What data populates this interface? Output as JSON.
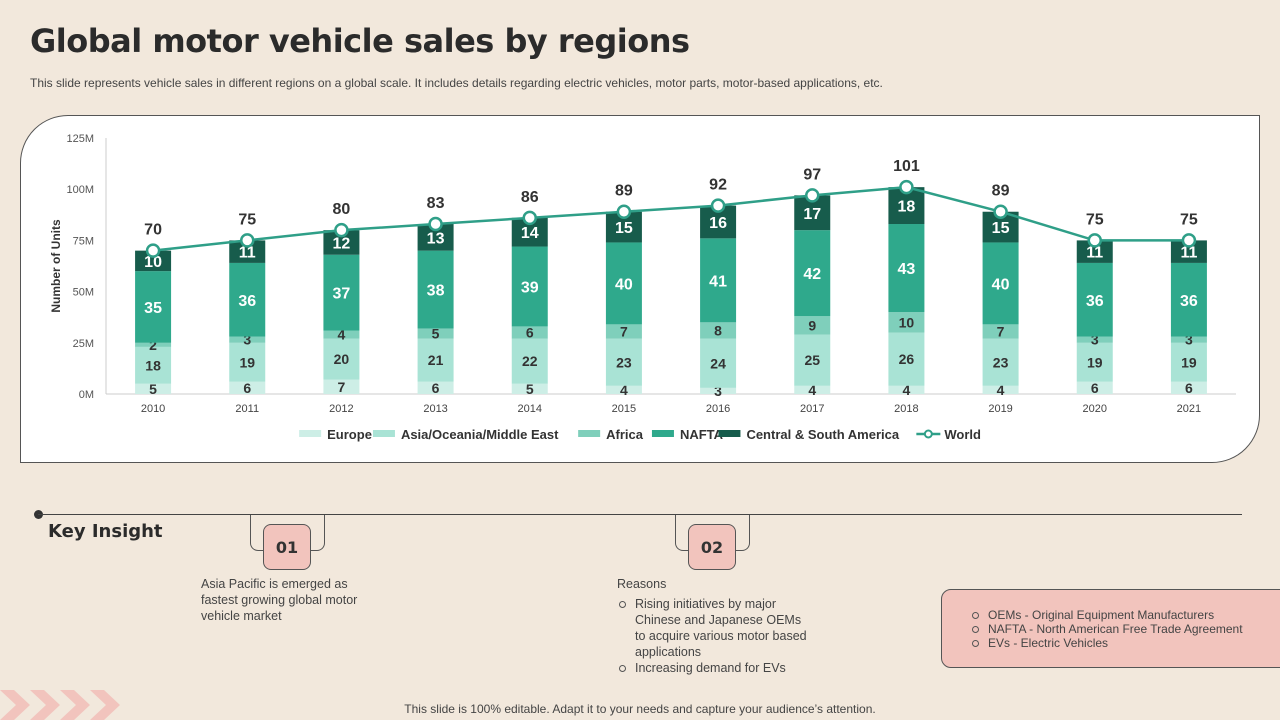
{
  "title": "Global motor vehicle sales by regions",
  "subtitle": "This slide represents vehicle sales in different regions on a global scale. It includes details regarding electric vehicles, motor parts, motor-based applications, etc.",
  "chart_data": {
    "type": "bar",
    "stacked": true,
    "ylabel": "Number of Units",
    "ylim": [
      0,
      125
    ],
    "yticks": [
      "0M",
      "25M",
      "50M",
      "75M",
      "100M",
      "125M"
    ],
    "categories": [
      "2010",
      "2011",
      "2012",
      "2013",
      "2014",
      "2015",
      "2016",
      "2017",
      "2018",
      "2019",
      "2020",
      "2021"
    ],
    "series": [
      {
        "name": "Europe",
        "color": "#cdeee6",
        "values": [
          5,
          6,
          7,
          6,
          5,
          4,
          3,
          4,
          4,
          4,
          6,
          6
        ]
      },
      {
        "name": "Asia/Oceania/Middle East",
        "color": "#a9e3d5",
        "values": [
          18,
          19,
          20,
          21,
          22,
          23,
          24,
          25,
          26,
          23,
          19,
          19
        ]
      },
      {
        "name": "Africa",
        "color": "#7fcfbb",
        "values": [
          2,
          3,
          4,
          5,
          6,
          7,
          8,
          9,
          10,
          7,
          3,
          3
        ]
      },
      {
        "name": "NAFTA",
        "color": "#2fa98c",
        "values": [
          35,
          36,
          37,
          38,
          39,
          40,
          41,
          42,
          43,
          40,
          36,
          36
        ]
      },
      {
        "name": "Central & South America",
        "color": "#175c4c",
        "values": [
          10,
          11,
          12,
          13,
          14,
          15,
          16,
          17,
          18,
          15,
          11,
          11
        ]
      }
    ],
    "line": {
      "name": "World",
      "color": "#2f9f88",
      "values": [
        70,
        75,
        80,
        83,
        86,
        89,
        92,
        97,
        101,
        89,
        75,
        75
      ]
    },
    "legend_position": "bottom"
  },
  "insights": {
    "heading": "Key Insight",
    "items": [
      {
        "number": "01",
        "text": "Asia Pacific is emerged as fastest growing global motor vehicle market"
      },
      {
        "number": "02",
        "title": "Reasons",
        "points": [
          "Rising initiatives by major Chinese and Japanese OEMs to acquire various motor based applications",
          "Increasing demand for EVs"
        ]
      }
    ]
  },
  "abbreviations": [
    "OEMs - Original Equipment Manufacturers",
    "NAFTA  - North American Free Trade Agreement",
    "EVs - Electric Vehicles"
  ],
  "footer": "This slide is 100% editable. Adapt it to your needs and capture your audience’s attention."
}
